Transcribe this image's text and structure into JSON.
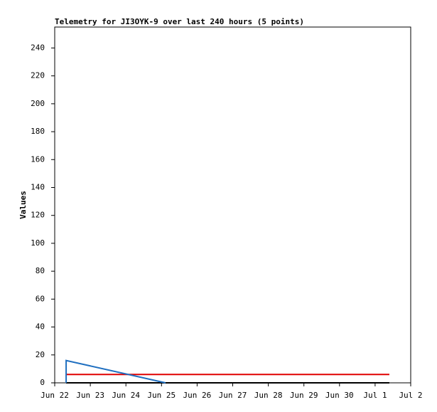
{
  "chart_data": {
    "type": "line",
    "title": "Telemetry for JI3OYK-9 over last 240 hours (5 points)",
    "y_label": "Values",
    "xlim": [
      0,
      240
    ],
    "xticks": [
      {
        "value": 0,
        "label": "Jun 22"
      },
      {
        "value": 24,
        "label": "Jun 23"
      },
      {
        "value": 48,
        "label": "Jun 24"
      },
      {
        "value": 72,
        "label": "Jun 25"
      },
      {
        "value": 96,
        "label": "Jun 26"
      },
      {
        "value": 120,
        "label": "Jun 27"
      },
      {
        "value": 144,
        "label": "Jun 28"
      },
      {
        "value": 168,
        "label": "Jun 29"
      },
      {
        "value": 192,
        "label": "Jun 30"
      },
      {
        "value": 216,
        "label": "Jul 1"
      },
      {
        "value": 240,
        "label": "Jul 2"
      }
    ],
    "ylim": [
      0,
      255
    ],
    "yticks": [
      0,
      20,
      40,
      60,
      80,
      100,
      120,
      140,
      160,
      180,
      200,
      220,
      240
    ],
    "series": [
      {
        "color": "#000000",
        "x": [
          7.7,
          225.6
        ],
        "values": [
          0,
          0
        ]
      },
      {
        "color": "#e00000",
        "x": [
          7.7,
          225.6
        ],
        "values": [
          6,
          6
        ]
      },
      {
        "color": "#1f6fc0",
        "x": [
          7.7,
          7.7,
          74.7
        ],
        "values": [
          0,
          16,
          0
        ]
      }
    ]
  }
}
